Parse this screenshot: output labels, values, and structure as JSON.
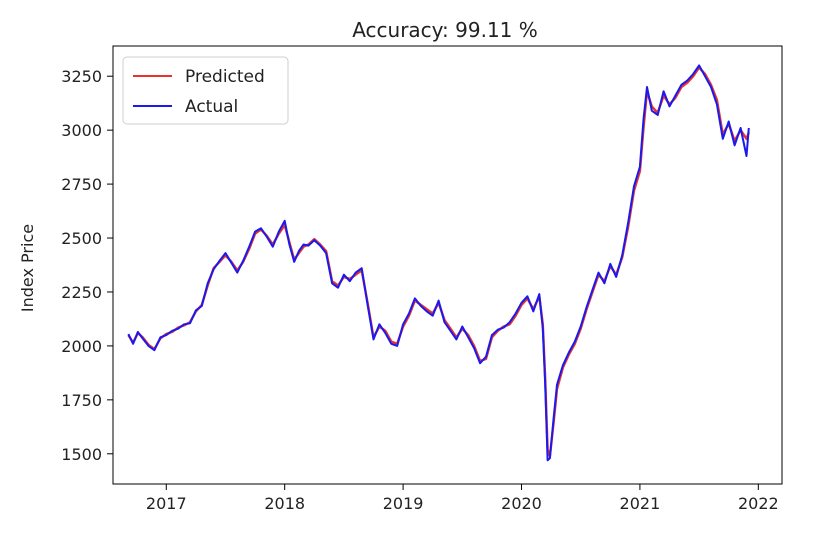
{
  "chart_data": {
    "type": "line",
    "title": "Accuracy: 99.11 %",
    "xlabel": "",
    "ylabel": "Index Price",
    "xlim": [
      2016.55,
      2022.2
    ],
    "ylim": [
      1360,
      3390
    ],
    "x_ticks": [
      2017,
      2018,
      2019,
      2020,
      2021,
      2022
    ],
    "x_tick_labels": [
      "2017",
      "2018",
      "2019",
      "2020",
      "2021",
      "2022"
    ],
    "y_ticks": [
      1500,
      1750,
      2000,
      2250,
      2500,
      2750,
      3000,
      3250
    ],
    "y_tick_labels": [
      "1500",
      "1750",
      "2000",
      "2250",
      "2500",
      "2750",
      "3000",
      "3250"
    ],
    "grid": false,
    "legend_position": "top-left",
    "x": [
      2016.68,
      2016.72,
      2016.76,
      2016.8,
      2016.85,
      2016.9,
      2016.95,
      2017.0,
      2017.05,
      2017.1,
      2017.15,
      2017.2,
      2017.25,
      2017.3,
      2017.35,
      2017.4,
      2017.45,
      2017.5,
      2017.55,
      2017.6,
      2017.65,
      2017.7,
      2017.75,
      2017.8,
      2017.85,
      2017.9,
      2017.95,
      2018.0,
      2018.04,
      2018.08,
      2018.12,
      2018.16,
      2018.2,
      2018.25,
      2018.3,
      2018.35,
      2018.4,
      2018.45,
      2018.5,
      2018.55,
      2018.6,
      2018.65,
      2018.7,
      2018.75,
      2018.8,
      2018.85,
      2018.9,
      2018.95,
      2019.0,
      2019.05,
      2019.1,
      2019.15,
      2019.2,
      2019.25,
      2019.3,
      2019.35,
      2019.4,
      2019.45,
      2019.5,
      2019.55,
      2019.6,
      2019.65,
      2019.7,
      2019.75,
      2019.8,
      2019.85,
      2019.9,
      2019.95,
      2020.0,
      2020.05,
      2020.1,
      2020.15,
      2020.18,
      2020.2,
      2020.22,
      2020.24,
      2020.27,
      2020.3,
      2020.35,
      2020.4,
      2020.45,
      2020.5,
      2020.55,
      2020.6,
      2020.65,
      2020.7,
      2020.75,
      2020.8,
      2020.85,
      2020.9,
      2020.95,
      2021.0,
      2021.03,
      2021.06,
      2021.1,
      2021.15,
      2021.2,
      2021.25,
      2021.3,
      2021.35,
      2021.4,
      2021.45,
      2021.5,
      2021.55,
      2021.6,
      2021.65,
      2021.7,
      2021.75,
      2021.8,
      2021.85,
      2021.9,
      2021.92
    ],
    "series": [
      {
        "name": "Predicted",
        "color": "#e8332b",
        "values": [
          2050,
          2015,
          2060,
          2040,
          2005,
          1985,
          2035,
          2055,
          2065,
          2085,
          2095,
          2110,
          2160,
          2190,
          2280,
          2360,
          2390,
          2420,
          2390,
          2350,
          2390,
          2450,
          2520,
          2540,
          2510,
          2470,
          2520,
          2560,
          2480,
          2400,
          2430,
          2460,
          2470,
          2495,
          2470,
          2440,
          2300,
          2280,
          2320,
          2310,
          2330,
          2350,
          2200,
          2040,
          2090,
          2070,
          2020,
          2010,
          2090,
          2140,
          2210,
          2190,
          2170,
          2150,
          2200,
          2120,
          2080,
          2040,
          2080,
          2050,
          2000,
          1930,
          1940,
          2040,
          2070,
          2090,
          2100,
          2140,
          2190,
          2220,
          2170,
          2230,
          2100,
          1850,
          1520,
          1490,
          1640,
          1800,
          1900,
          1960,
          2010,
          2080,
          2170,
          2250,
          2330,
          2300,
          2370,
          2330,
          2410,
          2550,
          2720,
          2810,
          3010,
          3180,
          3110,
          3080,
          3160,
          3120,
          3150,
          3200,
          3220,
          3250,
          3290,
          3260,
          3210,
          3140,
          2980,
          3030,
          2950,
          3000,
          2960,
          2990
        ]
      },
      {
        "name": "Actual",
        "color": "#1a1af0",
        "values": [
          2055,
          2010,
          2065,
          2035,
          2000,
          1980,
          2040,
          2050,
          2070,
          2080,
          2100,
          2105,
          2165,
          2185,
          2290,
          2355,
          2395,
          2430,
          2385,
          2340,
          2395,
          2460,
          2530,
          2545,
          2505,
          2460,
          2530,
          2580,
          2470,
          2390,
          2440,
          2470,
          2465,
          2490,
          2465,
          2430,
          2290,
          2270,
          2330,
          2300,
          2340,
          2360,
          2190,
          2030,
          2100,
          2060,
          2010,
          2000,
          2100,
          2150,
          2220,
          2185,
          2160,
          2140,
          2210,
          2110,
          2070,
          2030,
          2090,
          2040,
          1990,
          1920,
          1950,
          2050,
          2075,
          2085,
          2110,
          2150,
          2200,
          2230,
          2160,
          2240,
          2080,
          1820,
          1470,
          1480,
          1660,
          1820,
          1910,
          1970,
          2020,
          2090,
          2180,
          2260,
          2340,
          2290,
          2380,
          2320,
          2420,
          2570,
          2740,
          2830,
          3050,
          3200,
          3090,
          3070,
          3180,
          3110,
          3160,
          3210,
          3230,
          3260,
          3300,
          3250,
          3200,
          3120,
          2960,
          3040,
          2930,
          3010,
          2880,
          3010
        ]
      }
    ]
  }
}
